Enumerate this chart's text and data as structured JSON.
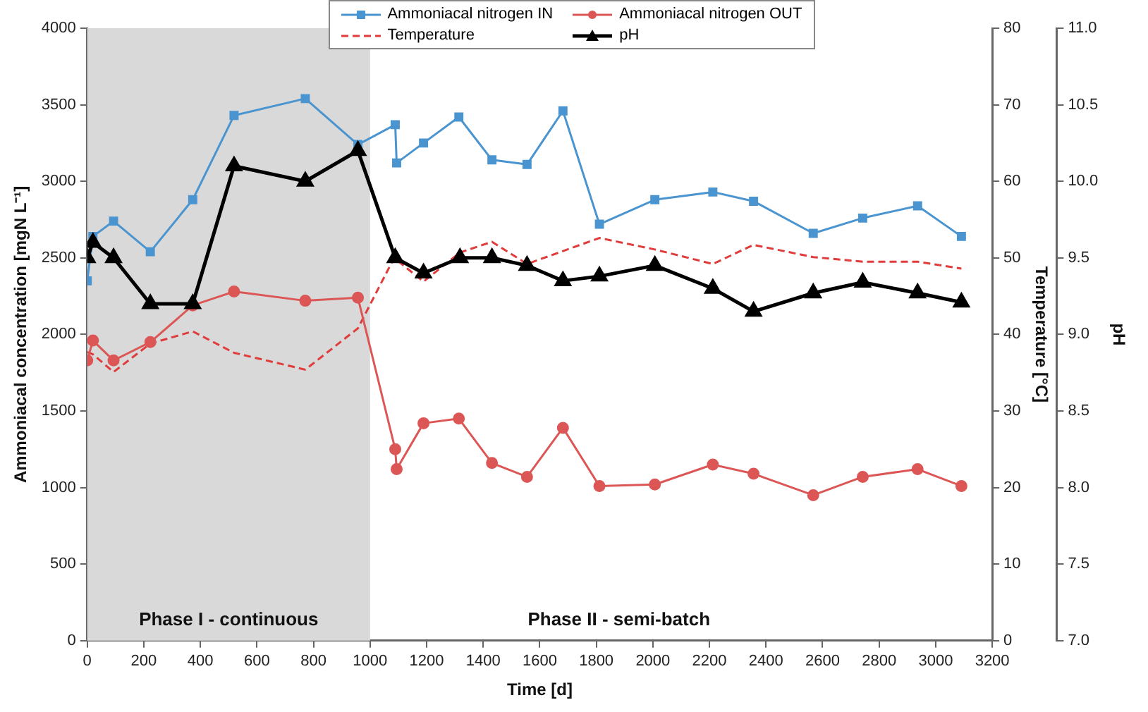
{
  "chart_data": {
    "type": "line",
    "xlabel": "Time [d]",
    "ylabel": "Ammoniacal concentration [mgN L⁻¹]",
    "y2label": "Temperature [°C]",
    "y3label": "pH",
    "xlim": [
      0,
      3200
    ],
    "xticks": [
      0,
      200,
      400,
      600,
      800,
      1000,
      1200,
      1400,
      1600,
      1800,
      2000,
      2200,
      2400,
      2600,
      2800,
      3000,
      3200
    ],
    "ylim": [
      0,
      4000
    ],
    "yticks": [
      0,
      500,
      1000,
      1500,
      2000,
      2500,
      3000,
      3500,
      4000
    ],
    "y2lim": [
      0,
      80
    ],
    "y2ticks": [
      0,
      10,
      20,
      30,
      40,
      50,
      60,
      70,
      80
    ],
    "y3lim": [
      7,
      11
    ],
    "y3ticks": [
      {
        "value": 7,
        "label": "7.0"
      },
      {
        "value": 7.5,
        "label": "7.5"
      },
      {
        "value": 8,
        "label": "8.0"
      },
      {
        "value": 8.5,
        "label": "8.5"
      },
      {
        "value": 9,
        "label": "9.0"
      },
      {
        "value": 9.5,
        "label": "9.5"
      },
      {
        "value": 10,
        "label": "10.0"
      },
      {
        "value": 10.5,
        "label": "10.5"
      },
      {
        "value": 11,
        "label": "11.0"
      }
    ],
    "grid": false,
    "legend": "top",
    "bands": [
      {
        "axis": "x",
        "from": 0,
        "to": 1000,
        "label": "Phase I - continuous",
        "color": "#d9d9d9"
      }
    ],
    "annotations": [
      "Phase II - semi-batch"
    ],
    "series": [
      {
        "name": "Ammoniacal nitrogen IN",
        "color": "#4a94d0",
        "marker": "square",
        "line_style": "solid",
        "x": [
          0,
          20,
          93,
          223,
          373,
          519,
          771,
          957,
          1089,
          1094,
          1189,
          1314,
          1431,
          1555,
          1682,
          1811,
          2007,
          2212,
          2356,
          2567,
          2742,
          2936,
          3091
        ],
        "values": [
          2350,
          2640,
          2740,
          2540,
          2880,
          3430,
          3540,
          3240,
          3370,
          3120,
          3250,
          3420,
          3140,
          3110,
          3460,
          2720,
          2880,
          2930,
          2870,
          2660,
          2760,
          2840,
          2640
        ]
      },
      {
        "name": "Ammoniacal nitrogen OUT",
        "color": "#dc5656",
        "marker": "circle",
        "line_style": "solid",
        "x": [
          0,
          20,
          93,
          223,
          373,
          519,
          771,
          957,
          1089,
          1094,
          1189,
          1314,
          1431,
          1555,
          1682,
          1811,
          2007,
          2212,
          2356,
          2567,
          2742,
          2936,
          3091
        ],
        "values": [
          1830,
          1960,
          1830,
          1950,
          2190,
          2280,
          2220,
          2240,
          1250,
          1120,
          1420,
          1450,
          1160,
          1070,
          1390,
          1010,
          1020,
          1150,
          1090,
          950,
          1070,
          1120,
          1010
        ]
      },
      {
        "name": "Temperature",
        "color": "#e03c3c",
        "marker": "none",
        "line_style": "dashed",
        "axis": "y2",
        "x": [
          0,
          20,
          93,
          223,
          373,
          519,
          771,
          957,
          1085,
          1189,
          1318,
          1431,
          1555,
          1811,
          2007,
          2212,
          2356,
          2567,
          2742,
          2936,
          3091
        ],
        "values": [
          37.7,
          37.4,
          35.1,
          38.8,
          40.4,
          37.6,
          35.4,
          40.8,
          50,
          46.9,
          50.7,
          52.1,
          49.2,
          52.6,
          51.1,
          49.2,
          51.7,
          50.1,
          49.5,
          49.5,
          48.6
        ]
      },
      {
        "name": "pH",
        "color": "#000000",
        "marker": "triangle",
        "line_style": "solid",
        "axis": "y3",
        "x": [
          0,
          20,
          93,
          223,
          373,
          519,
          771,
          957,
          1089,
          1189,
          1318,
          1431,
          1555,
          1682,
          1811,
          2007,
          2212,
          2356,
          2567,
          2742,
          2936,
          3091
        ],
        "values": [
          9.5,
          9.6,
          9.5,
          9.2,
          9.2,
          10.1,
          10.0,
          10.2,
          9.5,
          9.4,
          9.5,
          9.5,
          9.45,
          9.35,
          9.38,
          9.45,
          9.3,
          9.15,
          9.27,
          9.34,
          9.27,
          9.21
        ]
      }
    ]
  }
}
